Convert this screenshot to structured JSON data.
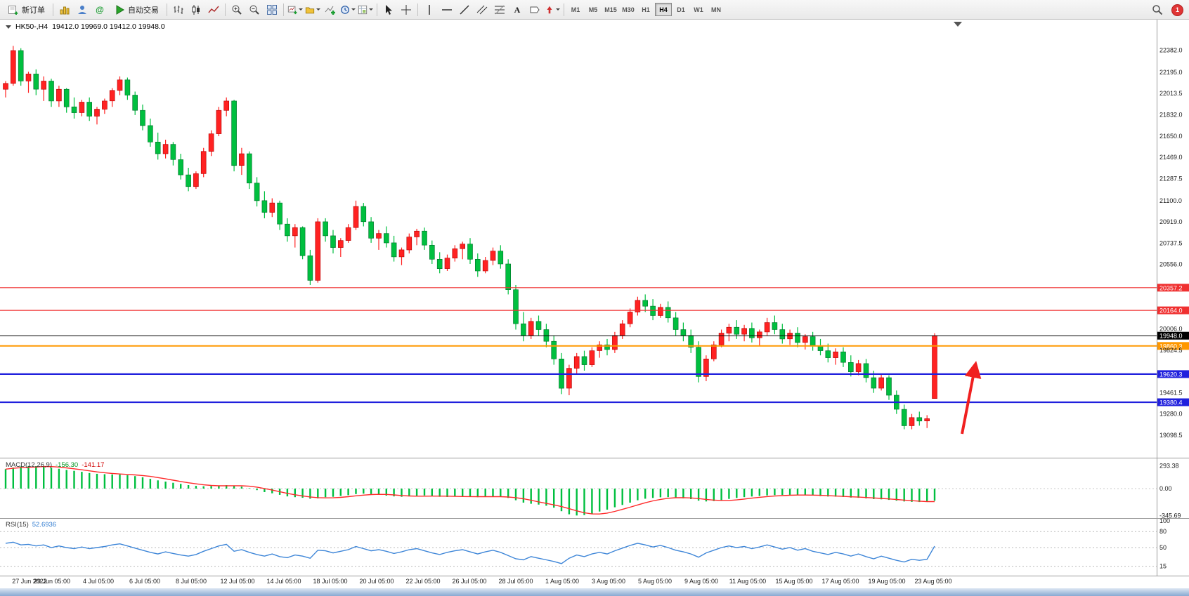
{
  "toolbar": {
    "new_order_label": "新订单",
    "auto_trading_label": "自动交易",
    "periods": [
      "M1",
      "M5",
      "M15",
      "M30",
      "H1",
      "H4",
      "D1",
      "W1",
      "MN"
    ],
    "active_period": "H4",
    "notification_count": "1"
  },
  "icons": {
    "community_glyph": "@",
    "text_tool_glyph": "A"
  },
  "chart_header": {
    "symbol_period": "HK50-,H4",
    "ohlc": "19412.0 19969.0 19412.0 19948.0"
  },
  "price_axis": {
    "regular": [
      22382.0,
      22195.0,
      22013.5,
      21832.0,
      21650.0,
      21469.0,
      21287.5,
      21100.0,
      20919.0,
      20737.5,
      20556.0,
      20006.0,
      19824.5,
      19461.5,
      19280.0,
      19098.5
    ],
    "tags": [
      {
        "label": "20357.2",
        "price": 20357.2,
        "bg": "#f03030",
        "lw": 1.2
      },
      {
        "label": "20164.0",
        "price": 20164.0,
        "bg": "#f03030",
        "lw": 1.2
      },
      {
        "label": "19948.0",
        "price": 19948.0,
        "bg": "#000000",
        "lw": 1.0
      },
      {
        "label": "19860.3",
        "price": 19860.3,
        "bg": "#ff9800",
        "lw": 2.0
      },
      {
        "label": "19620.3",
        "price": 19620.3,
        "bg": "#2020dd",
        "lw": 2.2
      },
      {
        "label": "19380.4",
        "price": 19380.4,
        "bg": "#2020dd",
        "lw": 2.2
      }
    ]
  },
  "time_axis": [
    "27 Jun 2022",
    "29 Jun 05:00",
    "4 Jul 05:00",
    "6 Jul 05:00",
    "8 Jul 05:00",
    "12 Jul 05:00",
    "14 Jul 05:00",
    "18 Jul 05:00",
    "20 Jul 05:00",
    "22 Jul 05:00",
    "26 Jul 05:00",
    "28 Jul 05:00",
    "1 Aug 05:00",
    "3 Aug 05:00",
    "5 Aug 05:00",
    "9 Aug 05:00",
    "11 Aug 05:00",
    "15 Aug 05:00",
    "17 Aug 05:00",
    "19 Aug 05:00",
    "23 Aug 05:00"
  ],
  "macd": {
    "label": "MACD(12,26,9)",
    "main_value": "-156.30",
    "signal_value": "-141.17",
    "axis": [
      "293.38",
      "0.00",
      "-345.69"
    ]
  },
  "rsi": {
    "label": "RSI(15)",
    "value": "52.6936",
    "axis": [
      "100",
      "80",
      "50",
      "15"
    ],
    "levels": [
      80,
      50,
      15
    ]
  },
  "annotation": {
    "arrow_color": "#f02020"
  },
  "chart_data": {
    "type": "candlestick",
    "symbol": "HK50-",
    "timeframe": "H4",
    "up_color": "#ff2222",
    "down_color": "#00bf3f",
    "convention": "red bullish / green bearish",
    "ohlc": [
      [
        22050,
        22120,
        21980,
        22100
      ],
      [
        22100,
        22420,
        22080,
        22380
      ],
      [
        22380,
        22400,
        22080,
        22120
      ],
      [
        22120,
        22200,
        22020,
        22180
      ],
      [
        22180,
        22220,
        22000,
        22050
      ],
      [
        22050,
        22160,
        21950,
        22120
      ],
      [
        22120,
        22140,
        21900,
        21950
      ],
      [
        21950,
        22080,
        21900,
        22050
      ],
      [
        22050,
        22060,
        21850,
        21900
      ],
      [
        21900,
        21980,
        21800,
        21850
      ],
      [
        21850,
        21960,
        21820,
        21940
      ],
      [
        21940,
        21980,
        21780,
        21820
      ],
      [
        21820,
        21900,
        21750,
        21880
      ],
      [
        21880,
        21970,
        21840,
        21950
      ],
      [
        21950,
        22060,
        21900,
        22040
      ],
      [
        22040,
        22160,
        22000,
        22130
      ],
      [
        22130,
        22150,
        21960,
        22000
      ],
      [
        22000,
        22030,
        21830,
        21870
      ],
      [
        21870,
        21920,
        21700,
        21740
      ],
      [
        21740,
        21800,
        21560,
        21600
      ],
      [
        21600,
        21680,
        21450,
        21500
      ],
      [
        21500,
        21620,
        21460,
        21580
      ],
      [
        21580,
        21600,
        21400,
        21450
      ],
      [
        21450,
        21500,
        21280,
        21320
      ],
      [
        21320,
        21380,
        21180,
        21220
      ],
      [
        21220,
        21350,
        21200,
        21330
      ],
      [
        21330,
        21550,
        21300,
        21520
      ],
      [
        21520,
        21700,
        21480,
        21670
      ],
      [
        21670,
        21900,
        21650,
        21870
      ],
      [
        21870,
        21980,
        21820,
        21950
      ],
      [
        21950,
        21960,
        21350,
        21400
      ],
      [
        21400,
        21550,
        21320,
        21500
      ],
      [
        21500,
        21520,
        21200,
        21250
      ],
      [
        21250,
        21300,
        21050,
        21100
      ],
      [
        21100,
        21180,
        20950,
        21000
      ],
      [
        21000,
        21120,
        20960,
        21080
      ],
      [
        21080,
        21100,
        20850,
        20900
      ],
      [
        20900,
        20950,
        20750,
        20800
      ],
      [
        20800,
        20900,
        20700,
        20870
      ],
      [
        20870,
        20880,
        20600,
        20630
      ],
      [
        20630,
        20680,
        20380,
        20420
      ],
      [
        20420,
        20950,
        20400,
        20920
      ],
      [
        20920,
        20950,
        20750,
        20800
      ],
      [
        20800,
        20850,
        20650,
        20700
      ],
      [
        20700,
        20780,
        20620,
        20760
      ],
      [
        20760,
        20900,
        20740,
        20870
      ],
      [
        20870,
        21100,
        20850,
        21050
      ],
      [
        21050,
        21080,
        20880,
        20920
      ],
      [
        20920,
        20960,
        20740,
        20780
      ],
      [
        20780,
        20850,
        20680,
        20820
      ],
      [
        20820,
        20880,
        20700,
        20740
      ],
      [
        20740,
        20800,
        20580,
        20620
      ],
      [
        20620,
        20700,
        20550,
        20680
      ],
      [
        20680,
        20820,
        20650,
        20790
      ],
      [
        20790,
        20860,
        20720,
        20840
      ],
      [
        20840,
        20870,
        20680,
        20720
      ],
      [
        20720,
        20760,
        20560,
        20600
      ],
      [
        20600,
        20660,
        20480,
        20520
      ],
      [
        20520,
        20640,
        20500,
        20610
      ],
      [
        20610,
        20720,
        20580,
        20690
      ],
      [
        20690,
        20750,
        20600,
        20730
      ],
      [
        20730,
        20780,
        20560,
        20600
      ],
      [
        20600,
        20650,
        20450,
        20500
      ],
      [
        20500,
        20620,
        20480,
        20590
      ],
      [
        20590,
        20700,
        20550,
        20670
      ],
      [
        20670,
        20720,
        20520,
        20560
      ],
      [
        20560,
        20600,
        20300,
        20340
      ],
      [
        20340,
        20380,
        20000,
        20050
      ],
      [
        20050,
        20150,
        19900,
        19950
      ],
      [
        19950,
        20100,
        19920,
        20070
      ],
      [
        20070,
        20120,
        19950,
        20000
      ],
      [
        20000,
        20050,
        19850,
        19900
      ],
      [
        19900,
        19950,
        19700,
        19750
      ],
      [
        19750,
        19800,
        19450,
        19500
      ],
      [
        19500,
        19700,
        19440,
        19670
      ],
      [
        19670,
        19800,
        19620,
        19770
      ],
      [
        19770,
        19820,
        19650,
        19700
      ],
      [
        19700,
        19850,
        19680,
        19820
      ],
      [
        19820,
        19900,
        19760,
        19870
      ],
      [
        19870,
        19920,
        19780,
        19830
      ],
      [
        19830,
        19980,
        19800,
        19950
      ],
      [
        19950,
        20080,
        19920,
        20050
      ],
      [
        20050,
        20180,
        20020,
        20150
      ],
      [
        20150,
        20280,
        20120,
        20250
      ],
      [
        20250,
        20300,
        20150,
        20200
      ],
      [
        20200,
        20260,
        20080,
        20120
      ],
      [
        20120,
        20220,
        20100,
        20190
      ],
      [
        20190,
        20240,
        20060,
        20100
      ],
      [
        20100,
        20150,
        19950,
        20000
      ],
      [
        20000,
        20060,
        19900,
        19950
      ],
      [
        19950,
        20000,
        19800,
        19850
      ],
      [
        19850,
        19900,
        19550,
        19600
      ],
      [
        19600,
        19780,
        19560,
        19750
      ],
      [
        19750,
        19900,
        19730,
        19870
      ],
      [
        19870,
        20000,
        19850,
        19970
      ],
      [
        19970,
        20050,
        19900,
        20020
      ],
      [
        20020,
        20080,
        19920,
        19960
      ],
      [
        19960,
        20040,
        19900,
        20010
      ],
      [
        20010,
        20060,
        19890,
        19930
      ],
      [
        19930,
        20000,
        19860,
        19980
      ],
      [
        19980,
        20100,
        19950,
        20060
      ],
      [
        20060,
        20120,
        19960,
        20000
      ],
      [
        20000,
        20050,
        19880,
        19920
      ],
      [
        19920,
        20000,
        19870,
        19970
      ],
      [
        19970,
        20020,
        19850,
        19890
      ],
      [
        19890,
        19960,
        19830,
        19940
      ],
      [
        19940,
        19980,
        19820,
        19860
      ],
      [
        19860,
        19920,
        19780,
        19820
      ],
      [
        19820,
        19880,
        19720,
        19760
      ],
      [
        19760,
        19840,
        19700,
        19810
      ],
      [
        19810,
        19850,
        19680,
        19720
      ],
      [
        19720,
        19780,
        19600,
        19640
      ],
      [
        19640,
        19740,
        19610,
        19710
      ],
      [
        19710,
        19750,
        19550,
        19590
      ],
      [
        19590,
        19650,
        19460,
        19500
      ],
      [
        19500,
        19620,
        19480,
        19590
      ],
      [
        19590,
        19610,
        19400,
        19440
      ],
      [
        19440,
        19480,
        19280,
        19320
      ],
      [
        19320,
        19360,
        19150,
        19180
      ],
      [
        19180,
        19280,
        19150,
        19250
      ],
      [
        19250,
        19300,
        19180,
        19220
      ],
      [
        19220,
        19270,
        19160,
        19240
      ],
      [
        19412,
        19969,
        19412,
        19948
      ]
    ],
    "macd_histogram": [
      250,
      270,
      285,
      290,
      288,
      280,
      268,
      255,
      240,
      228,
      215,
      200,
      190,
      185,
      182,
      180,
      172,
      160,
      145,
      125,
      105,
      90,
      75,
      60,
      45,
      35,
      30,
      32,
      38,
      45,
      40,
      25,
      5,
      -20,
      -45,
      -60,
      -80,
      -100,
      -110,
      -118,
      -130,
      -125,
      -110,
      -105,
      -95,
      -85,
      -70,
      -65,
      -70,
      -80,
      -90,
      -100,
      -105,
      -100,
      -92,
      -88,
      -95,
      -105,
      -108,
      -104,
      -98,
      -100,
      -110,
      -108,
      -100,
      -102,
      -120,
      -150,
      -180,
      -195,
      -205,
      -220,
      -245,
      -290,
      -330,
      -345,
      -340,
      -320,
      -295,
      -270,
      -240,
      -210,
      -180,
      -150,
      -130,
      -120,
      -112,
      -110,
      -115,
      -125,
      -135,
      -155,
      -165,
      -160,
      -148,
      -132,
      -120,
      -110,
      -102,
      -95,
      -88,
      -84,
      -82,
      -80,
      -82,
      -85,
      -90,
      -96,
      -102,
      -104,
      -108,
      -115,
      -118,
      -125,
      -135,
      -138,
      -145,
      -155,
      -165,
      -170,
      -172,
      -170,
      -156.3
    ],
    "rsi": [
      58,
      60,
      55,
      56,
      53,
      55,
      50,
      53,
      50,
      48,
      51,
      48,
      50,
      52,
      55,
      57,
      53,
      49,
      45,
      41,
      38,
      42,
      39,
      36,
      34,
      37,
      43,
      48,
      53,
      56,
      43,
      46,
      41,
      37,
      34,
      38,
      33,
      31,
      36,
      34,
      30,
      45,
      44,
      40,
      43,
      46,
      52,
      48,
      44,
      46,
      43,
      39,
      42,
      46,
      48,
      44,
      40,
      37,
      41,
      44,
      46,
      42,
      38,
      42,
      45,
      41,
      35,
      29,
      27,
      33,
      30,
      27,
      24,
      20,
      30,
      36,
      33,
      38,
      41,
      38,
      44,
      49,
      54,
      58,
      55,
      51,
      54,
      50,
      45,
      42,
      38,
      32,
      40,
      45,
      50,
      53,
      50,
      52,
      48,
      51,
      55,
      51,
      47,
      50,
      45,
      48,
      43,
      40,
      37,
      41,
      38,
      34,
      38,
      33,
      29,
      34,
      30,
      26,
      23,
      28,
      26,
      28,
      52.69
    ]
  }
}
